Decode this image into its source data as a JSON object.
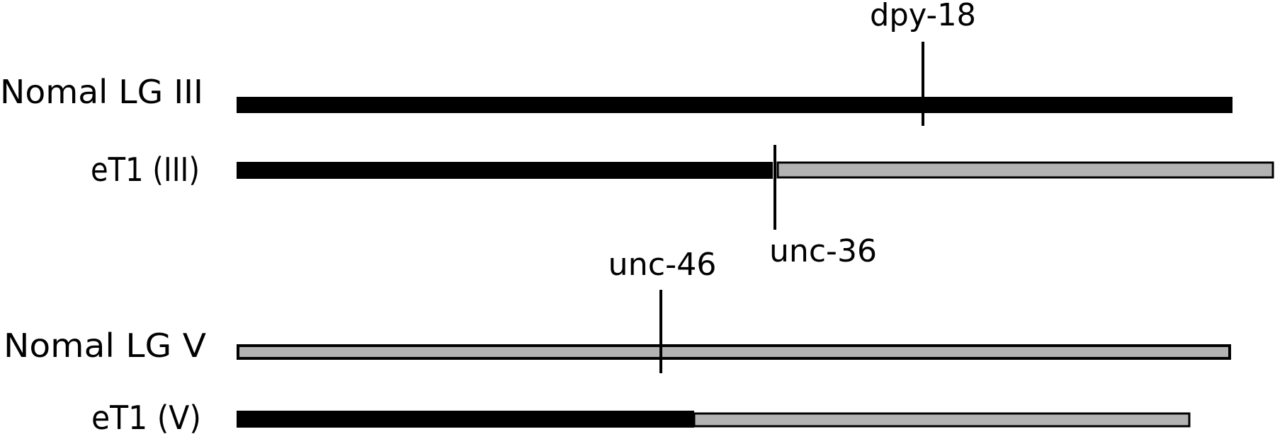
{
  "colors": {
    "black_segment": "#000000",
    "gray_segment": "#b3b3b3",
    "outline": "#000000",
    "background": "#ffffff"
  },
  "chromosomes": [
    {
      "id": "normal-lg-iii",
      "label": "Nomal LG III"
    },
    {
      "id": "et1-iii",
      "label": "eT1 (III)"
    },
    {
      "id": "normal-lg-v",
      "label": "Nomal LG V"
    },
    {
      "id": "et1-v",
      "label": "eT1 (V)"
    }
  ],
  "markers": {
    "dpy18": {
      "label": "dpy-18"
    },
    "unc36": {
      "label": "unc-36"
    },
    "unc46": {
      "label": "unc-46"
    }
  }
}
